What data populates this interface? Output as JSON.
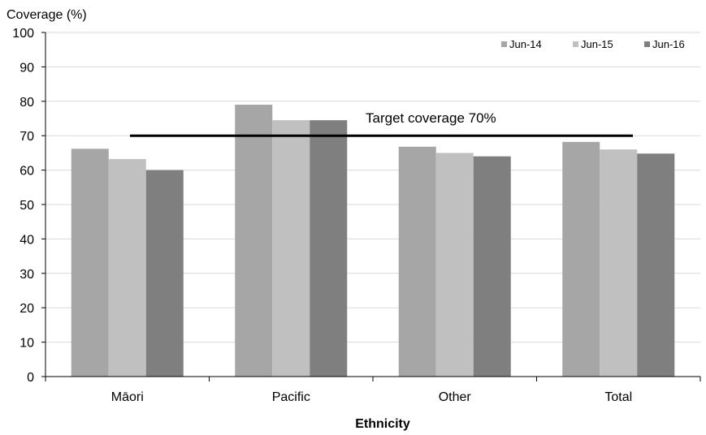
{
  "chart_data": {
    "type": "bar",
    "y_axis_title": "Coverage (%)",
    "xlabel": "Ethnicity",
    "categories": [
      "Māori",
      "Pacific",
      "Other",
      "Total"
    ],
    "series": [
      {
        "name": "Jun-14",
        "color": "#a6a6a6",
        "values": [
          66.2,
          79.0,
          66.8,
          68.2
        ]
      },
      {
        "name": "Jun-15",
        "color": "#c0c0c0",
        "values": [
          63.2,
          74.5,
          65.0,
          66.0
        ]
      },
      {
        "name": "Jun-16",
        "color": "#7f7f7f",
        "values": [
          60.0,
          74.5,
          64.0,
          64.8
        ]
      }
    ],
    "ylim": [
      0,
      100
    ],
    "yticks": [
      0,
      10,
      20,
      30,
      40,
      50,
      60,
      70,
      80,
      90,
      100
    ],
    "gridlines": true,
    "legend_position": "top-right",
    "target": {
      "value": 70,
      "label": "Target coverage 70%"
    }
  }
}
